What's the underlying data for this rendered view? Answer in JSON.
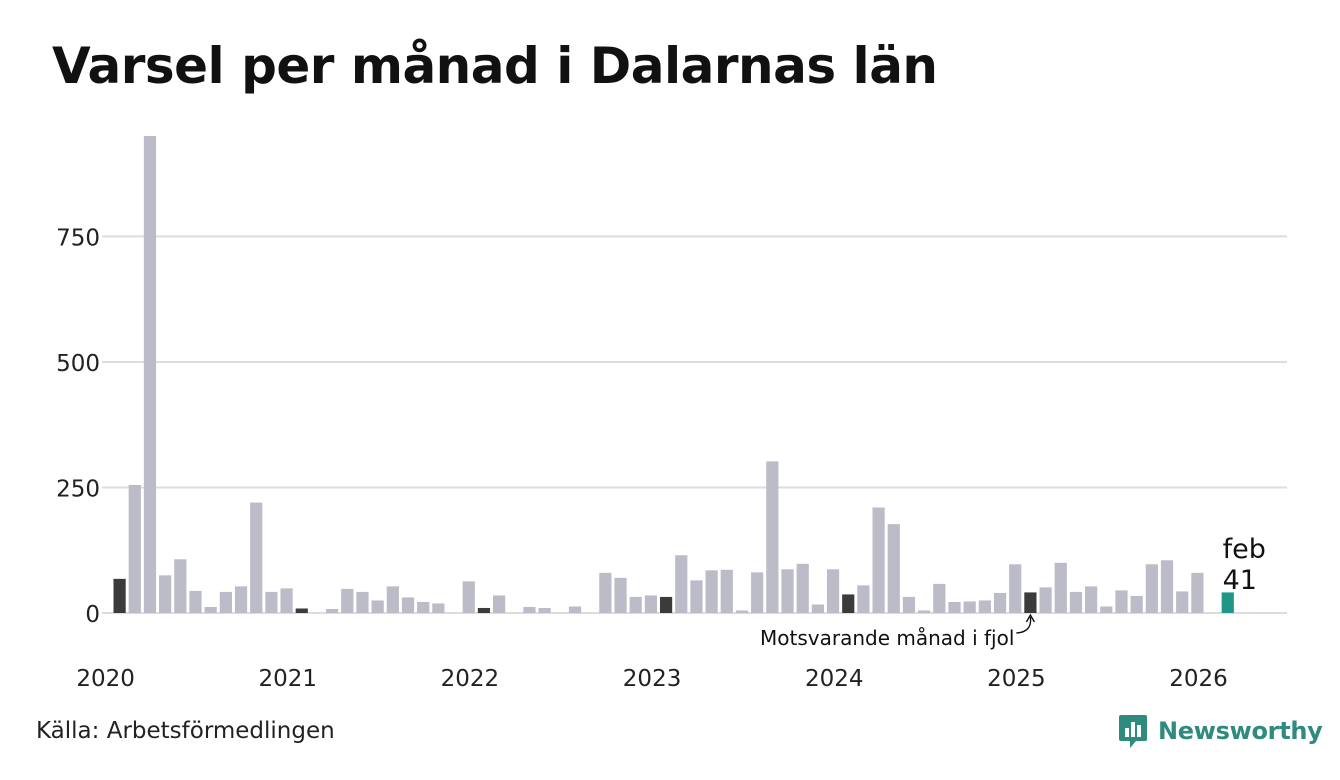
{
  "title": "Varsel per månad i Dalarnas län",
  "source": "Källa: Arbetsförmedlingen",
  "brand": "Newsworthy",
  "colors": {
    "bar": "#bcbbc8",
    "comparison": "#3b3b3b",
    "highlight": "#1f9688",
    "grid": "#dddddd",
    "brand": "#2e8b7e"
  },
  "chart_data": {
    "type": "bar",
    "xlabel": "",
    "ylabel": "",
    "ylim": [
      0,
      950
    ],
    "yticks": [
      0,
      250,
      500,
      750
    ],
    "xticks": [
      "2020",
      "2021",
      "2022",
      "2023",
      "2024",
      "2025",
      "2026"
    ],
    "grid": true,
    "start": "2020-01",
    "values": [
      68,
      255,
      950,
      75,
      107,
      44,
      12,
      42,
      53,
      220,
      42,
      49,
      9,
      0,
      8,
      48,
      42,
      25,
      53,
      31,
      22,
      19,
      0,
      63,
      10,
      35,
      0,
      12,
      10,
      0,
      13,
      0,
      80,
      70,
      32,
      35,
      32,
      115,
      65,
      85,
      86,
      5,
      81,
      302,
      87,
      98,
      17,
      87,
      37,
      55,
      210,
      177,
      32,
      5,
      58,
      22,
      23,
      25,
      40,
      97,
      41,
      51,
      100,
      42,
      53,
      13,
      45,
      34,
      97,
      105,
      43,
      80,
      0,
      41
    ],
    "comparison_indices": [
      0,
      12,
      24,
      36,
      48,
      60
    ],
    "highlight": {
      "label": "feb",
      "value": "41"
    },
    "annotation": "Motsvarande månad i fjol"
  }
}
